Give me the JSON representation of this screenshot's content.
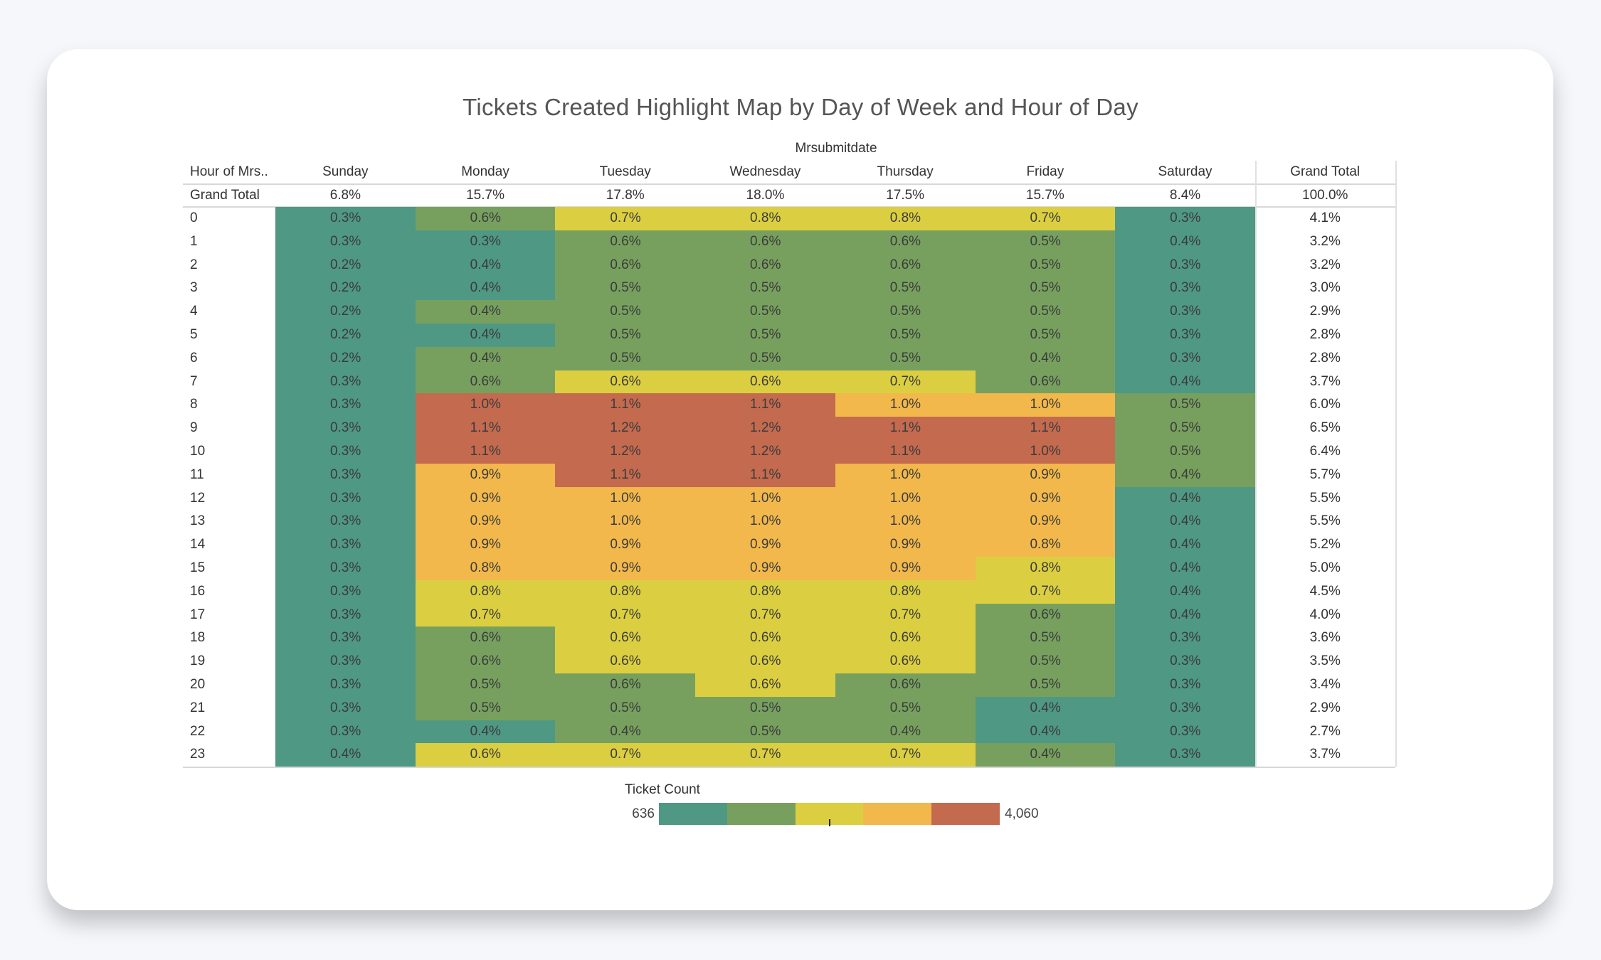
{
  "chart_data": {
    "type": "heatmap",
    "title": "Tickets Created Highlight Map by Day of Week and Hour of Day",
    "column_field": "Mrsubmitdate",
    "row_field": "Hour of Mrs..",
    "columns": [
      "Sunday",
      "Monday",
      "Tuesday",
      "Wednesday",
      "Thursday",
      "Friday",
      "Saturday"
    ],
    "grand_total_label": "Grand Total",
    "column_totals": [
      "6.8%",
      "15.7%",
      "17.8%",
      "18.0%",
      "17.5%",
      "15.7%",
      "8.4%"
    ],
    "overall_total": "100.0%",
    "rows": [
      {
        "hour": "0",
        "values": [
          "0.3%",
          "0.6%",
          "0.7%",
          "0.8%",
          "0.8%",
          "0.7%",
          "0.3%"
        ],
        "levels": [
          0,
          1,
          2,
          2,
          2,
          2,
          0
        ],
        "total": "4.1%"
      },
      {
        "hour": "1",
        "values": [
          "0.3%",
          "0.3%",
          "0.6%",
          "0.6%",
          "0.6%",
          "0.5%",
          "0.4%"
        ],
        "levels": [
          0,
          0,
          1,
          1,
          1,
          1,
          0
        ],
        "total": "3.2%"
      },
      {
        "hour": "2",
        "values": [
          "0.2%",
          "0.4%",
          "0.6%",
          "0.6%",
          "0.6%",
          "0.5%",
          "0.3%"
        ],
        "levels": [
          0,
          0,
          1,
          1,
          1,
          1,
          0
        ],
        "total": "3.2%"
      },
      {
        "hour": "3",
        "values": [
          "0.2%",
          "0.4%",
          "0.5%",
          "0.5%",
          "0.5%",
          "0.5%",
          "0.3%"
        ],
        "levels": [
          0,
          0,
          1,
          1,
          1,
          1,
          0
        ],
        "total": "3.0%"
      },
      {
        "hour": "4",
        "values": [
          "0.2%",
          "0.4%",
          "0.5%",
          "0.5%",
          "0.5%",
          "0.5%",
          "0.3%"
        ],
        "levels": [
          0,
          1,
          1,
          1,
          1,
          1,
          0
        ],
        "total": "2.9%"
      },
      {
        "hour": "5",
        "values": [
          "0.2%",
          "0.4%",
          "0.5%",
          "0.5%",
          "0.5%",
          "0.5%",
          "0.3%"
        ],
        "levels": [
          0,
          0,
          1,
          1,
          1,
          1,
          0
        ],
        "total": "2.8%"
      },
      {
        "hour": "6",
        "values": [
          "0.2%",
          "0.4%",
          "0.5%",
          "0.5%",
          "0.5%",
          "0.4%",
          "0.3%"
        ],
        "levels": [
          0,
          1,
          1,
          1,
          1,
          1,
          0
        ],
        "total": "2.8%"
      },
      {
        "hour": "7",
        "values": [
          "0.3%",
          "0.6%",
          "0.6%",
          "0.6%",
          "0.7%",
          "0.6%",
          "0.4%"
        ],
        "levels": [
          0,
          1,
          2,
          2,
          2,
          1,
          0
        ],
        "total": "3.7%"
      },
      {
        "hour": "8",
        "values": [
          "0.3%",
          "1.0%",
          "1.1%",
          "1.1%",
          "1.0%",
          "1.0%",
          "0.5%"
        ],
        "levels": [
          0,
          4,
          4,
          4,
          3,
          3,
          1
        ],
        "total": "6.0%"
      },
      {
        "hour": "9",
        "values": [
          "0.3%",
          "1.1%",
          "1.2%",
          "1.2%",
          "1.1%",
          "1.1%",
          "0.5%"
        ],
        "levels": [
          0,
          4,
          4,
          4,
          4,
          4,
          1
        ],
        "total": "6.5%"
      },
      {
        "hour": "10",
        "values": [
          "0.3%",
          "1.1%",
          "1.2%",
          "1.2%",
          "1.1%",
          "1.0%",
          "0.5%"
        ],
        "levels": [
          0,
          4,
          4,
          4,
          4,
          4,
          1
        ],
        "total": "6.4%"
      },
      {
        "hour": "11",
        "values": [
          "0.3%",
          "0.9%",
          "1.1%",
          "1.1%",
          "1.0%",
          "0.9%",
          "0.4%"
        ],
        "levels": [
          0,
          3,
          4,
          4,
          3,
          3,
          1
        ],
        "total": "5.7%"
      },
      {
        "hour": "12",
        "values": [
          "0.3%",
          "0.9%",
          "1.0%",
          "1.0%",
          "1.0%",
          "0.9%",
          "0.4%"
        ],
        "levels": [
          0,
          3,
          3,
          3,
          3,
          3,
          0
        ],
        "total": "5.5%"
      },
      {
        "hour": "13",
        "values": [
          "0.3%",
          "0.9%",
          "1.0%",
          "1.0%",
          "1.0%",
          "0.9%",
          "0.4%"
        ],
        "levels": [
          0,
          3,
          3,
          3,
          3,
          3,
          0
        ],
        "total": "5.5%"
      },
      {
        "hour": "14",
        "values": [
          "0.3%",
          "0.9%",
          "0.9%",
          "0.9%",
          "0.9%",
          "0.8%",
          "0.4%"
        ],
        "levels": [
          0,
          3,
          3,
          3,
          3,
          3,
          0
        ],
        "total": "5.2%"
      },
      {
        "hour": "15",
        "values": [
          "0.3%",
          "0.8%",
          "0.9%",
          "0.9%",
          "0.9%",
          "0.8%",
          "0.4%"
        ],
        "levels": [
          0,
          3,
          3,
          3,
          3,
          2,
          0
        ],
        "total": "5.0%"
      },
      {
        "hour": "16",
        "values": [
          "0.3%",
          "0.8%",
          "0.8%",
          "0.8%",
          "0.8%",
          "0.7%",
          "0.4%"
        ],
        "levels": [
          0,
          2,
          2,
          2,
          2,
          2,
          0
        ],
        "total": "4.5%"
      },
      {
        "hour": "17",
        "values": [
          "0.3%",
          "0.7%",
          "0.7%",
          "0.7%",
          "0.7%",
          "0.6%",
          "0.4%"
        ],
        "levels": [
          0,
          2,
          2,
          2,
          2,
          1,
          0
        ],
        "total": "4.0%"
      },
      {
        "hour": "18",
        "values": [
          "0.3%",
          "0.6%",
          "0.6%",
          "0.6%",
          "0.6%",
          "0.5%",
          "0.3%"
        ],
        "levels": [
          0,
          1,
          2,
          2,
          2,
          1,
          0
        ],
        "total": "3.6%"
      },
      {
        "hour": "19",
        "values": [
          "0.3%",
          "0.6%",
          "0.6%",
          "0.6%",
          "0.6%",
          "0.5%",
          "0.3%"
        ],
        "levels": [
          0,
          1,
          2,
          2,
          2,
          1,
          0
        ],
        "total": "3.5%"
      },
      {
        "hour": "20",
        "values": [
          "0.3%",
          "0.5%",
          "0.6%",
          "0.6%",
          "0.6%",
          "0.5%",
          "0.3%"
        ],
        "levels": [
          0,
          1,
          1,
          2,
          1,
          1,
          0
        ],
        "total": "3.4%"
      },
      {
        "hour": "21",
        "values": [
          "0.3%",
          "0.5%",
          "0.5%",
          "0.5%",
          "0.5%",
          "0.4%",
          "0.3%"
        ],
        "levels": [
          0,
          1,
          1,
          1,
          1,
          0,
          0
        ],
        "total": "2.9%"
      },
      {
        "hour": "22",
        "values": [
          "0.3%",
          "0.4%",
          "0.4%",
          "0.5%",
          "0.4%",
          "0.4%",
          "0.3%"
        ],
        "levels": [
          0,
          0,
          1,
          1,
          1,
          0,
          0
        ],
        "total": "2.7%"
      },
      {
        "hour": "23",
        "values": [
          "0.4%",
          "0.6%",
          "0.7%",
          "0.7%",
          "0.7%",
          "0.4%",
          "0.3%"
        ],
        "levels": [
          0,
          2,
          2,
          2,
          2,
          1,
          0
        ],
        "total": "3.7%"
      }
    ],
    "legend": {
      "title": "Ticket Count",
      "min": "636",
      "max": "4,060"
    },
    "colors": [
      "#4f9883",
      "#77a05f",
      "#dbcf41",
      "#f2b84b",
      "#c46a4f"
    ]
  }
}
